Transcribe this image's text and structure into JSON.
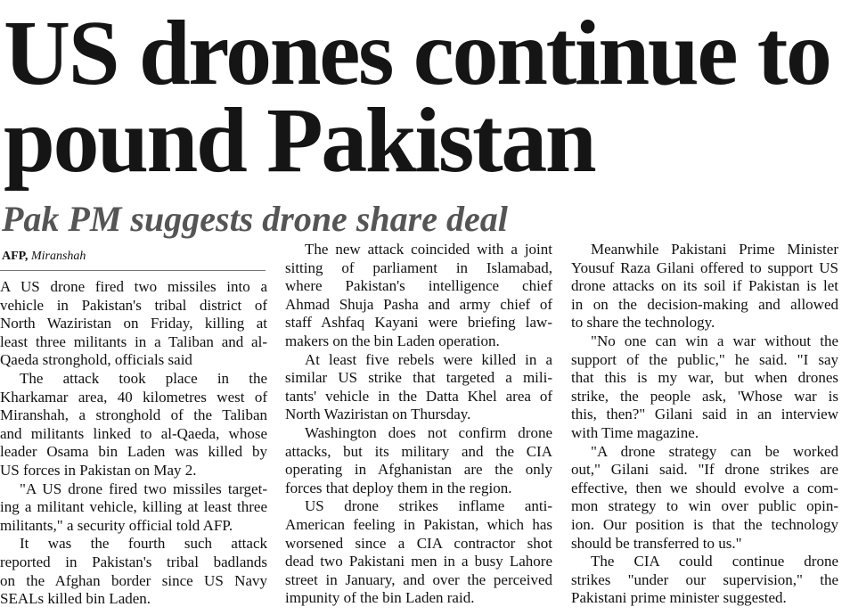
{
  "headline": {
    "lines": [
      "US drones continue to",
      "pound Pakistan"
    ]
  },
  "subheadline": "Pak PM suggests drone share deal",
  "byline": {
    "agency": "AFP,",
    "location": "Miranshah"
  },
  "article": {
    "columns": [
      {
        "paragraphs": [
          [
            "A US drone fired two missiles into a",
            "vehicle in Pakistan's tribal district of",
            "North Waziristan on Friday, killing at",
            "least three militants in a Taliban and al-",
            "Qaeda stronghold, officials said"
          ],
          [
            "The attack took place in the",
            "Kharkamar area, 40 kilometres west of",
            "Miranshah, a stronghold of the Taliban",
            "and militants linked to al-Qaeda, whose",
            "leader Osama bin Laden was killed by",
            "US forces in Pakistan on May 2."
          ],
          [
            "\"A US drone fired two missiles target-",
            "ing a militant vehicle, killing at least three",
            "militants,\" a security official told AFP."
          ],
          [
            "It was the fourth such attack",
            "reported in Pakistan's tribal badlands",
            "on the Afghan border since US Navy",
            "SEALs killed bin Laden."
          ]
        ]
      },
      {
        "paragraphs": [
          [
            "The new attack coincided with a joint",
            "sitting of parliament in Islamabad,",
            "where Pakistan's intelligence chief",
            "Ahmad Shuja Pasha and army chief of",
            "staff Ashfaq Kayani were briefing law-",
            "makers on the bin Laden operation."
          ],
          [
            "At least five rebels were killed in a",
            "similar US strike that targeted a mili-",
            "tants' vehicle in the Datta Khel area of",
            "North Waziristan on Thursday."
          ],
          [
            "Washington does not confirm drone",
            "attacks, but its military and the CIA",
            "operating in Afghanistan are the only",
            "forces that deploy them in the region."
          ],
          [
            "US drone strikes inflame anti-",
            "American feeling in Pakistan, which has",
            "worsened since a CIA contractor shot",
            "dead two Pakistani men in a busy Lahore",
            "street in January, and over the perceived",
            "impunity of the bin Laden raid."
          ]
        ]
      },
      {
        "paragraphs": [
          [
            "Meanwhile Pakistani Prime Minister",
            "Yousuf Raza Gilani offered to support US",
            "drone attacks on its soil if Pakistan is let",
            "in on the decision-making and allowed",
            "to share the technology."
          ],
          [
            "\"No one can win a war without the",
            "support of the public,\" he said. \"I say",
            "that this is my war, but when drones",
            "strike, the people ask, 'Whose war is",
            "this, then?\" Gilani said in an interview",
            "with Time magazine."
          ],
          [
            "\"A drone strategy can be worked",
            "out,\" Gilani said. \"If drone strikes are",
            "effective, then we should evolve a com-",
            "mon strategy to win over public opin-",
            "ion. Our position is that the technology",
            "should be transferred to us.\""
          ],
          [
            "The CIA could continue drone",
            "strikes \"under our supervision,\" the",
            "Pakistani prime minister suggested."
          ]
        ]
      }
    ]
  }
}
